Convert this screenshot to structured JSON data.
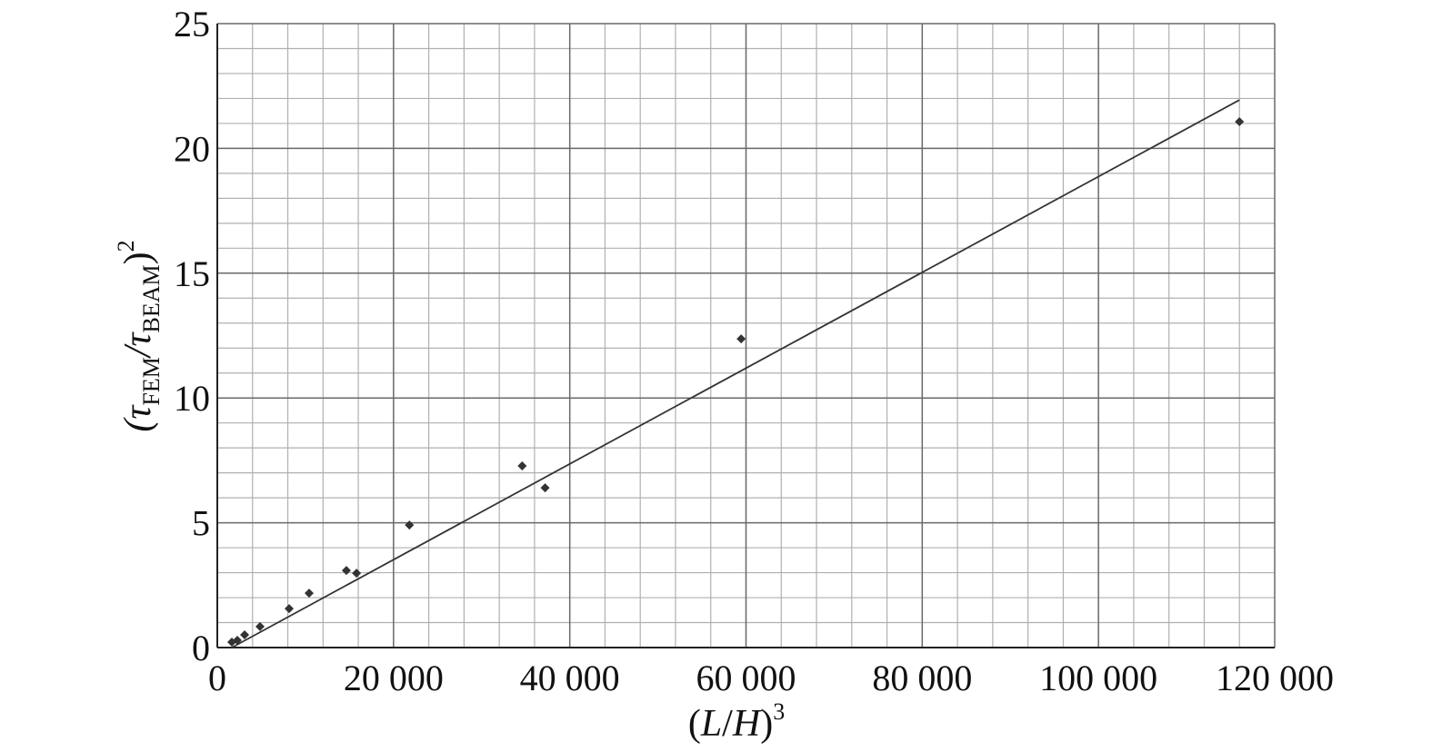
{
  "chart_data": {
    "type": "scatter",
    "xlabel": [
      {
        "text": "("
      },
      {
        "text": "L",
        "style": "italic"
      },
      {
        "text": "/"
      },
      {
        "text": "H",
        "style": "italic"
      },
      {
        "text": ")"
      },
      {
        "text": "3",
        "style": "sup"
      }
    ],
    "ylabel": [
      {
        "text": "(τ",
        "style": "italic"
      },
      {
        "text": "FEM",
        "style": "sub"
      },
      {
        "text": "/τ",
        "style": "italic"
      },
      {
        "text": "BEAM",
        "style": "sub"
      },
      {
        "text": ")"
      },
      {
        "text": "2",
        "style": "sup"
      }
    ],
    "xlim": [
      0,
      120000
    ],
    "ylim": [
      0,
      25
    ],
    "xticks": [
      0,
      {
        "value": 20000,
        "label": "20 000"
      },
      {
        "value": 40000,
        "label": "40 000"
      },
      {
        "value": 60000,
        "label": "60 000"
      },
      {
        "value": 80000,
        "label": "80 000"
      },
      {
        "value": 100000,
        "label": "100 000"
      },
      {
        "value": 120000,
        "label": "120 000"
      }
    ],
    "yticks": [
      0,
      5,
      10,
      15,
      20,
      25
    ],
    "minor_grid_step": {
      "x": 4000,
      "y": 1
    },
    "grid": true,
    "series": [
      {
        "type": "scatter",
        "color": "#333333",
        "x": [
          1650,
          2270,
          3100,
          4850,
          8150,
          10420,
          14650,
          15800,
          21800,
          34600,
          37200,
          59450,
          116000
        ],
        "values": [
          0.22,
          0.29,
          0.51,
          0.84,
          1.56,
          2.18,
          3.09,
          2.98,
          4.91,
          7.28,
          6.4,
          12.37,
          21.07
        ]
      },
      {
        "type": "line",
        "color": "#333333",
        "x": [
          1650,
          116000
        ],
        "values": [
          0,
          21.94
        ]
      }
    ]
  }
}
